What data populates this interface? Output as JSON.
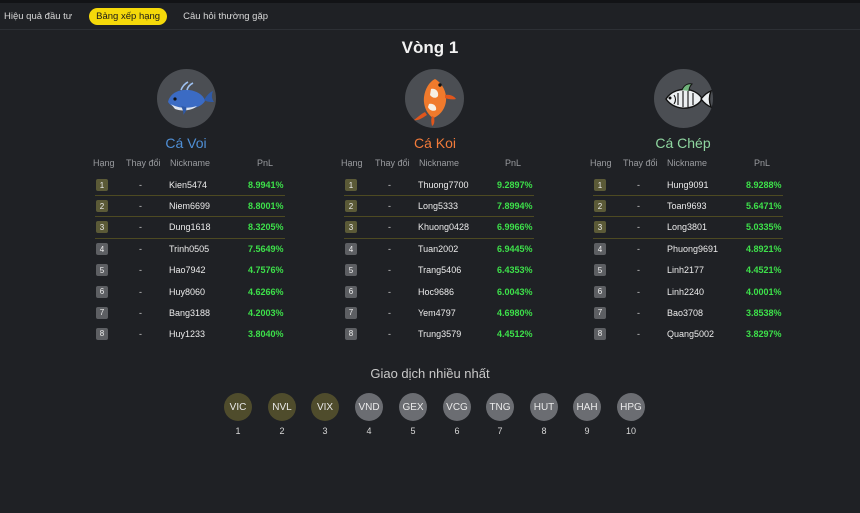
{
  "tabs": [
    "Hiệu quả đầu tư",
    "Bảng xếp hạng",
    "Câu hỏi thường gặp"
  ],
  "title": "Vòng 1",
  "headers": [
    "Hạng",
    "Thay đổi",
    "Nickname",
    "PnL"
  ],
  "accent": "#f5d90a",
  "pnl_color": "#3de04a",
  "groups": [
    {
      "name": "Cá Voi",
      "color": "#4f8fd6",
      "icon": "whale-icon",
      "rows": [
        {
          "rank": "1",
          "change": "-",
          "nick": "Kien5474",
          "pnl": "8.9941%"
        },
        {
          "rank": "2",
          "change": "-",
          "nick": "Niem6699",
          "pnl": "8.8001%"
        },
        {
          "rank": "3",
          "change": "-",
          "nick": "Dung1618",
          "pnl": "8.3205%"
        },
        {
          "rank": "4",
          "change": "-",
          "nick": "Trinh0505",
          "pnl": "7.5649%"
        },
        {
          "rank": "5",
          "change": "-",
          "nick": "Hao7942",
          "pnl": "4.7576%"
        },
        {
          "rank": "6",
          "change": "-",
          "nick": "Huy8060",
          "pnl": "4.6266%"
        },
        {
          "rank": "7",
          "change": "-",
          "nick": "Bang3188",
          "pnl": "4.2003%"
        },
        {
          "rank": "8",
          "change": "-",
          "nick": "Huy1233",
          "pnl": "3.8040%"
        }
      ]
    },
    {
      "name": "Cá Koi",
      "color": "#f27b3a",
      "icon": "koi-icon",
      "rows": [
        {
          "rank": "1",
          "change": "-",
          "nick": "Thuong7700",
          "pnl": "9.2897%"
        },
        {
          "rank": "2",
          "change": "-",
          "nick": "Long5333",
          "pnl": "7.8994%"
        },
        {
          "rank": "3",
          "change": "-",
          "nick": "Khuong0428",
          "pnl": "6.9966%"
        },
        {
          "rank": "4",
          "change": "-",
          "nick": "Tuan2002",
          "pnl": "6.9445%"
        },
        {
          "rank": "5",
          "change": "-",
          "nick": "Trang5406",
          "pnl": "6.4353%"
        },
        {
          "rank": "6",
          "change": "-",
          "nick": "Hoc9686",
          "pnl": "6.0043%"
        },
        {
          "rank": "7",
          "change": "-",
          "nick": "Yem4797",
          "pnl": "4.6980%"
        },
        {
          "rank": "8",
          "change": "-",
          "nick": "Trung3579",
          "pnl": "4.4512%"
        }
      ]
    },
    {
      "name": "Cá Chép",
      "color": "#8fd6a0",
      "icon": "carp-icon",
      "rows": [
        {
          "rank": "1",
          "change": "-",
          "nick": "Hung9091",
          "pnl": "8.9288%"
        },
        {
          "rank": "2",
          "change": "-",
          "nick": "Toan9693",
          "pnl": "5.6471%"
        },
        {
          "rank": "3",
          "change": "-",
          "nick": "Long3801",
          "pnl": "5.0335%"
        },
        {
          "rank": "4",
          "change": "-",
          "nick": "Phuong9691",
          "pnl": "4.8921%"
        },
        {
          "rank": "5",
          "change": "-",
          "nick": "Linh2177",
          "pnl": "4.4521%"
        },
        {
          "rank": "6",
          "change": "-",
          "nick": "Linh2240",
          "pnl": "4.0001%"
        },
        {
          "rank": "7",
          "change": "-",
          "nick": "Bao3708",
          "pnl": "3.8538%"
        },
        {
          "rank": "8",
          "change": "-",
          "nick": "Quang5002",
          "pnl": "3.8297%"
        }
      ]
    }
  ],
  "most_traded": {
    "title": "Giao dịch nhiều nhất",
    "tickers": [
      {
        "code": "VIC",
        "rank": "1"
      },
      {
        "code": "NVL",
        "rank": "2"
      },
      {
        "code": "VIX",
        "rank": "3"
      },
      {
        "code": "VND",
        "rank": "4"
      },
      {
        "code": "GEX",
        "rank": "5"
      },
      {
        "code": "VCG",
        "rank": "6"
      },
      {
        "code": "TNG",
        "rank": "7"
      },
      {
        "code": "HUT",
        "rank": "8"
      },
      {
        "code": "HAH",
        "rank": "9"
      },
      {
        "code": "HPG",
        "rank": "10"
      }
    ]
  }
}
